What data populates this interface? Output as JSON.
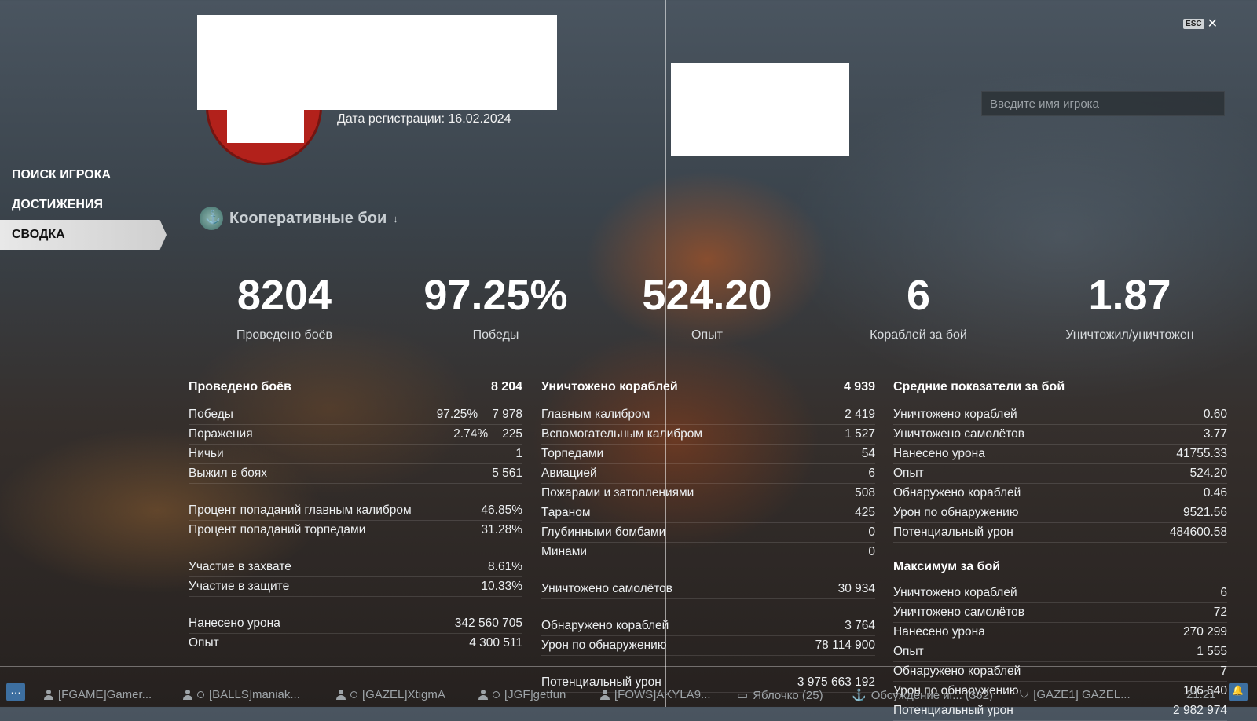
{
  "header": {
    "esc_key": "ESC",
    "close_glyph": "✕",
    "registration_label": "Дата регистрации: 16.02.2024",
    "search_placeholder": "Введите имя игрока"
  },
  "nav": {
    "items": [
      {
        "label": "ПОИСК ИГРОКА",
        "active": false
      },
      {
        "label": "ДОСТИЖЕНИЯ",
        "active": false
      },
      {
        "label": "СВОДКА",
        "active": true
      }
    ]
  },
  "mode_selector": {
    "label": "Кооперативные бои",
    "arrow": "↓",
    "icon": "coop-anchor-icon"
  },
  "big_stats": [
    {
      "value": "8204",
      "label": "Проведено боёв"
    },
    {
      "value": "97.25%",
      "label": "Победы"
    },
    {
      "value": "524.20",
      "label": "Опыт"
    },
    {
      "value": "6",
      "label": "Кораблей за бой"
    },
    {
      "value": "1.87",
      "label": "Уничтожил/уничтожен"
    }
  ],
  "col1": {
    "title": "Проведено боёв",
    "title_value": "8 204",
    "group1": [
      {
        "label": "Победы",
        "pct": "97.25%",
        "value": "7 978"
      },
      {
        "label": "Поражения",
        "pct": "2.74%",
        "value": "225"
      },
      {
        "label": "Ничьи",
        "pct": "",
        "value": "1"
      },
      {
        "label": "Выжил в боях",
        "pct": "",
        "value": "5 561"
      }
    ],
    "group2": [
      {
        "label": "Процент попаданий главным калибром",
        "value": "46.85%"
      },
      {
        "label": "Процент попаданий торпедами",
        "value": "31.28%"
      }
    ],
    "group3": [
      {
        "label": "Участие в захвате",
        "value": "8.61%"
      },
      {
        "label": "Участие в защите",
        "value": "10.33%"
      }
    ],
    "group4": [
      {
        "label": "Нанесено урона",
        "value": "342 560 705"
      },
      {
        "label": "Опыт",
        "value": "4 300 511"
      }
    ]
  },
  "col2": {
    "title": "Уничтожено кораблей",
    "title_value": "4 939",
    "group1": [
      {
        "label": "Главным калибром",
        "value": "2 419"
      },
      {
        "label": "Вспомогательным калибром",
        "value": "1 527"
      },
      {
        "label": "Торпедами",
        "value": "54"
      },
      {
        "label": "Авиацией",
        "value": "6"
      },
      {
        "label": "Пожарами и затоплениями",
        "value": "508"
      },
      {
        "label": "Тараном",
        "value": "425"
      },
      {
        "label": "Глубинными бомбами",
        "value": "0"
      },
      {
        "label": "Минами",
        "value": "0"
      }
    ],
    "group2": [
      {
        "label": "Уничтожено самолётов",
        "value": "30 934"
      }
    ],
    "group3": [
      {
        "label": "Обнаружено кораблей",
        "value": "3 764"
      },
      {
        "label": "Урон по обнаружению",
        "value": "78 114 900"
      }
    ],
    "group4": [
      {
        "label": "Потенциальный урон",
        "value": "3 975 663 192"
      }
    ]
  },
  "col3": {
    "title": "Средние показатели за бой",
    "group1": [
      {
        "label": "Уничтожено кораблей",
        "value": "0.60"
      },
      {
        "label": "Уничтожено самолётов",
        "value": "3.77"
      },
      {
        "label": "Нанесено урона",
        "value": "41755.33"
      },
      {
        "label": "Опыт",
        "value": "524.20"
      },
      {
        "label": "Обнаружено кораблей",
        "value": "0.46"
      },
      {
        "label": "Урон по обнаружению",
        "value": "9521.56"
      },
      {
        "label": "Потенциальный урон",
        "value": "484600.58"
      }
    ],
    "title2": "Максимум за бой",
    "group2": [
      {
        "label": "Уничтожено кораблей",
        "value": "6"
      },
      {
        "label": "Уничтожено самолётов",
        "value": "72"
      },
      {
        "label": "Нанесено урона",
        "value": "270 299"
      },
      {
        "label": "Опыт",
        "value": "1 555"
      },
      {
        "label": "Обнаружено кораблей",
        "value": "7"
      },
      {
        "label": "Урон по обнаружению",
        "value": "106 640"
      },
      {
        "label": "Потенциальный урон",
        "value": "2 982 974"
      }
    ]
  },
  "taskbar": {
    "items": [
      {
        "label": "[FGAME]Gamer...",
        "icon": "person-icon"
      },
      {
        "label": "[BALLS]maniak...",
        "icon": "person-icon"
      },
      {
        "label": "[GAZEL]XtigmA",
        "icon": "person-icon"
      },
      {
        "label": "[JGF]getfun",
        "icon": "person-icon"
      },
      {
        "label": "[FOWS]AKYLA9...",
        "icon": "person-icon"
      },
      {
        "label": "Яблочко (25)",
        "icon": "chat-icon"
      },
      {
        "label": "Обсуждение иг... (362)",
        "icon": "anchor-icon"
      },
      {
        "label": "[GAZE1] GAZEL...",
        "icon": "shield-icon"
      }
    ],
    "clock": "21:21"
  }
}
